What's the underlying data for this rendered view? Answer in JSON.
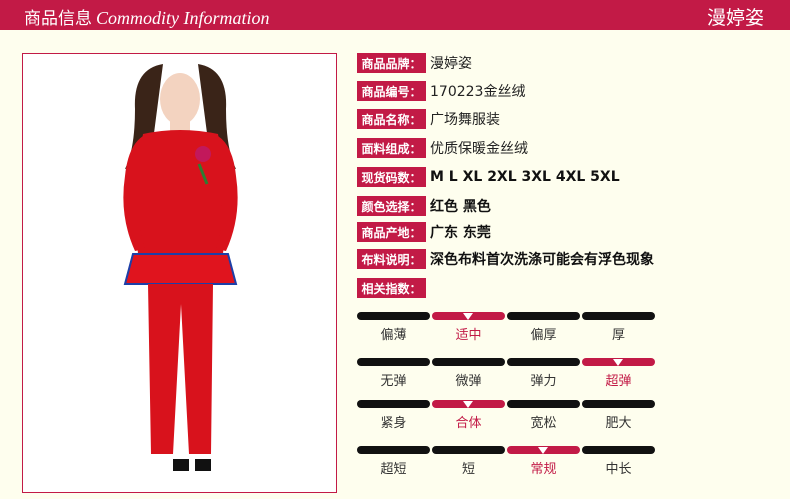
{
  "header": {
    "title_cn": "商品信息",
    "title_en": "Commodity Information",
    "brand": "漫婷姿"
  },
  "colors": {
    "accent": "#c21a46",
    "background": "#fefeee"
  },
  "specs": [
    {
      "label": "商品品牌：",
      "value": "漫婷姿"
    },
    {
      "label": "商品编号：",
      "value": "170223金丝绒"
    },
    {
      "label": "商品名称：",
      "value": "广场舞服装"
    },
    {
      "label": "面料组成：",
      "value": "优质保暖金丝绒"
    },
    {
      "label": "现货码数：",
      "value": "M L XL 2XL 3XL 4XL 5XL"
    },
    {
      "label": "颜色选择：",
      "value": "红色  黑色"
    },
    {
      "label": "商品产地：",
      "value": "广东 东莞"
    },
    {
      "label": "布料说明：",
      "value": "深色布料首次洗涤可能会有浮色现象"
    },
    {
      "label": "相关指数：",
      "value": ""
    }
  ],
  "scales": [
    {
      "options": [
        "偏薄",
        "适中",
        "偏厚",
        "厚"
      ],
      "selected": 1
    },
    {
      "options": [
        "无弹",
        "微弹",
        "弹力",
        "超弹"
      ],
      "selected": 3
    },
    {
      "options": [
        "紧身",
        "合体",
        "宽松",
        "肥大"
      ],
      "selected": 1
    },
    {
      "options": [
        "超短",
        "短",
        "常规",
        "中长"
      ],
      "selected": 2
    }
  ]
}
